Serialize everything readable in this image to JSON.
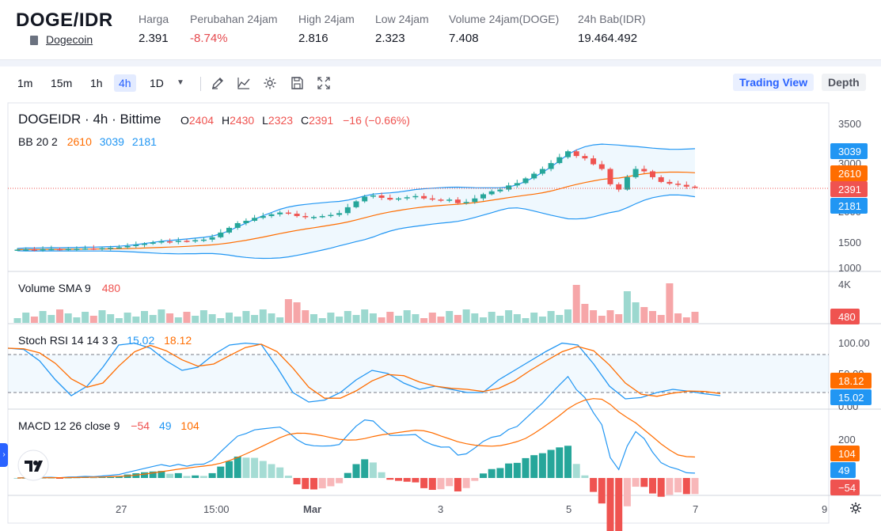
{
  "header": {
    "pair": "DOGE/IDR",
    "coin_link": "Dogecoin",
    "stats": [
      {
        "label": "Harga",
        "value": "2.391"
      },
      {
        "label": "Perubahan 24jam",
        "value": "-8.74%"
      },
      {
        "label": "High 24jam",
        "value": "2.816"
      },
      {
        "label": "Low 24jam",
        "value": "2.323"
      },
      {
        "label": "Volume 24jam(DOGE)",
        "value": "7.408"
      },
      {
        "label": "24h Bab(IDR)",
        "value": "19.464.492"
      }
    ]
  },
  "toolbar": {
    "timeframes": [
      "1m",
      "15m",
      "1h",
      "4h",
      "1D"
    ],
    "active_timeframe": "4h",
    "view_tabs": [
      "Trading View",
      "Depth"
    ]
  },
  "legend": {
    "symbol": "DOGEIDR · 4h · Bittime",
    "o_label": "O",
    "o": "2404",
    "h_label": "H",
    "h": "2430",
    "l_label": "L",
    "l": "2323",
    "c_label": "C",
    "c": "2391",
    "change": "−16 (−0.66%)",
    "bb_label": "BB 20 2",
    "bb_mid": "2610",
    "bb_up": "3039",
    "bb_low": "2181",
    "vol_label": "Volume SMA 9",
    "vol_val": "480",
    "stoch_label": "Stoch RSI 14 14 3 3",
    "stoch_k": "15.02",
    "stoch_d": "18.12",
    "macd_label": "MACD 12 26 close 9",
    "macd_hist": "−54",
    "macd_line": "49",
    "macd_signal": "104"
  },
  "axes": {
    "price_ticks": [
      "3500",
      "3000",
      "2500",
      "2000",
      "1500",
      "1000"
    ],
    "price_tags": {
      "upper": "3039",
      "mid": "2610",
      "last": "2391",
      "lower": "2181"
    },
    "volume_tick": "4K",
    "volume_tag": "480",
    "stoch_ticks": [
      "100.00",
      "50.00",
      "0.00"
    ],
    "stoch_tags": {
      "d": "18.12",
      "k": "15.02"
    },
    "macd_ticks": [
      "200"
    ],
    "macd_tags": {
      "signal": "104",
      "line": "49",
      "hist": "−54"
    },
    "time_labels": [
      "27",
      "15:00",
      "Mar",
      "3",
      "5",
      "7",
      "9"
    ]
  },
  "colors": {
    "up": "#26a69a",
    "down": "#ef5350",
    "bb_mid": "#ff6d00",
    "bb_band": "#2196f3",
    "k": "#2196f3",
    "d": "#ff6d00"
  }
}
